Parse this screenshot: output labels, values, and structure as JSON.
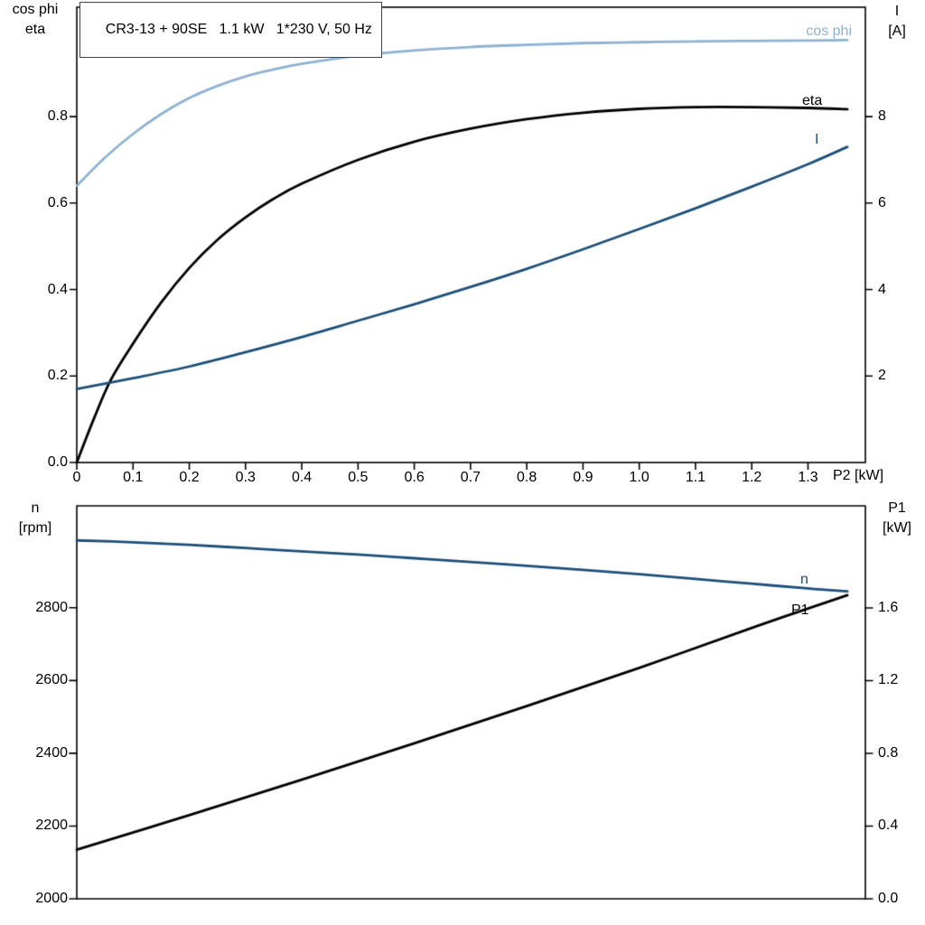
{
  "title": "CR3-13 + 90SE   1.1 kW   1*230 V, 50 Hz",
  "axis_color": "#000000",
  "chart_data": [
    {
      "type": "line",
      "name": "motor-performance",
      "x_axis": {
        "label": "P2 [kW]",
        "lim": [
          0,
          1.402
        ],
        "tick_labels": [
          "0",
          "0.1",
          "0.2",
          "0.3",
          "0.4",
          "0.5",
          "0.6",
          "0.7",
          "0.8",
          "0.9",
          "1.0",
          "1.1",
          "1.2",
          "1.3"
        ]
      },
      "left_axis": {
        "title_line1": "cos phi",
        "title_line2": "eta",
        "lim": [
          0,
          1.053
        ],
        "tick_labels": [
          "0.0",
          "0.2",
          "0.4",
          "0.6",
          "0.8"
        ]
      },
      "right_axis": {
        "title_line1": "I",
        "title_line2": "[A]",
        "lim": [
          0,
          10.53
        ],
        "tick_labels": [
          "2",
          "4",
          "6",
          "8"
        ]
      },
      "series": [
        {
          "name": "cos phi",
          "label": "cos phi",
          "axis": "left",
          "color": "#8fb2d1",
          "x": [
            0,
            0.05,
            0.1,
            0.15,
            0.2,
            0.25,
            0.3,
            0.35,
            0.4,
            0.5,
            0.6,
            0.7,
            0.8,
            0.9,
            1.0,
            1.1,
            1.2,
            1.3,
            1.37
          ],
          "y": [
            0.64,
            0.705,
            0.76,
            0.806,
            0.843,
            0.871,
            0.893,
            0.909,
            0.922,
            0.941,
            0.953,
            0.961,
            0.966,
            0.97,
            0.972,
            0.974,
            0.975,
            0.976,
            0.977
          ]
        },
        {
          "name": "eta",
          "label": "eta",
          "axis": "left",
          "color": "#000000",
          "x": [
            0,
            0.03,
            0.06,
            0.1,
            0.15,
            0.2,
            0.25,
            0.3,
            0.35,
            0.4,
            0.5,
            0.6,
            0.7,
            0.8,
            0.9,
            1.0,
            1.1,
            1.2,
            1.3,
            1.37
          ],
          "y": [
            0,
            0.1,
            0.19,
            0.275,
            0.37,
            0.45,
            0.515,
            0.567,
            0.61,
            0.645,
            0.7,
            0.742,
            0.772,
            0.794,
            0.809,
            0.818,
            0.822,
            0.822,
            0.82,
            0.817
          ]
        },
        {
          "name": "I",
          "label": "I",
          "axis": "right",
          "color": "#1d4f78",
          "x": [
            0,
            0.1,
            0.2,
            0.3,
            0.4,
            0.5,
            0.6,
            0.7,
            0.8,
            0.9,
            1.0,
            1.1,
            1.2,
            1.3,
            1.37
          ],
          "y": [
            1.7,
            1.95,
            2.22,
            2.55,
            2.9,
            3.28,
            3.66,
            4.06,
            4.48,
            4.93,
            5.4,
            5.88,
            6.38,
            6.9,
            7.3
          ]
        }
      ]
    },
    {
      "type": "line",
      "name": "speed-and-input-power",
      "x_axis": {
        "label": "",
        "lim": [
          0,
          1.402
        ],
        "tick_labels": []
      },
      "left_axis": {
        "title_line1": "n",
        "title_line2": "[rpm]",
        "lim": [
          2000,
          3080
        ],
        "tick_labels": [
          "2000",
          "2200",
          "2400",
          "2600",
          "2800"
        ]
      },
      "right_axis": {
        "title_line1": "P1",
        "title_line2": "[kW]",
        "lim": [
          0,
          2.161
        ],
        "tick_labels": [
          "0.0",
          "0.4",
          "0.8",
          "1.2",
          "1.6"
        ]
      },
      "series": [
        {
          "name": "n",
          "label": "n",
          "axis": "left",
          "color": "#1d4f78",
          "x": [
            0,
            0.1,
            0.2,
            0.3,
            0.4,
            0.5,
            0.6,
            0.7,
            0.8,
            0.9,
            1.0,
            1.1,
            1.2,
            1.3,
            1.37
          ],
          "y": [
            2985,
            2980,
            2973,
            2964,
            2955,
            2946,
            2936,
            2926,
            2915,
            2904,
            2892,
            2879,
            2866,
            2853,
            2845
          ]
        },
        {
          "name": "P1",
          "label": "P1",
          "axis": "right",
          "color": "#000000",
          "x": [
            0,
            0.2,
            0.4,
            0.6,
            0.8,
            1.0,
            1.2,
            1.37
          ],
          "y": [
            0.27,
            0.46,
            0.655,
            0.855,
            1.06,
            1.27,
            1.49,
            1.67
          ]
        }
      ]
    }
  ]
}
